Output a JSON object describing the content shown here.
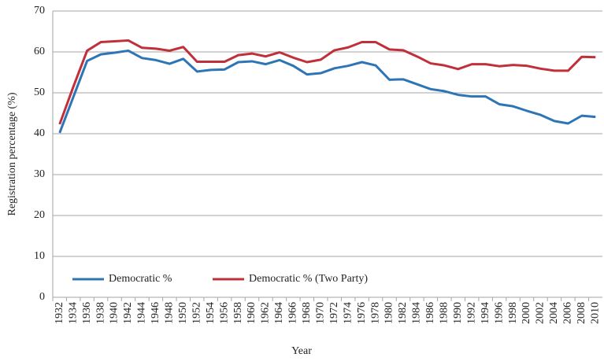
{
  "chart_data": {
    "type": "line",
    "x_label": "Year",
    "y_label": "Registration percentage (%)",
    "categories": [
      "1932",
      "1934",
      "1936",
      "1938",
      "1940",
      "1942",
      "1944",
      "1946",
      "1948",
      "1950",
      "1952",
      "1954",
      "1956",
      "1958",
      "1960",
      "1962",
      "1964",
      "1966",
      "1968",
      "1970",
      "1972",
      "1974",
      "1976",
      "1978",
      "1980",
      "1982",
      "1984",
      "1986",
      "1988",
      "1990",
      "1992",
      "1994",
      "1996",
      "1998",
      "2000",
      "2002",
      "2004",
      "2006",
      "2008",
      "2010"
    ],
    "series": [
      {
        "name": "Democratic %",
        "color": "#2e75b6",
        "values": [
          40.2,
          49,
          57.8,
          59.4,
          59.8,
          60.3,
          58.5,
          58,
          57.1,
          58.3,
          55.2,
          55.6,
          55.7,
          57.5,
          57.7,
          57,
          58,
          56.6,
          54.5,
          54.8,
          56,
          56.6,
          57.5,
          56.7,
          53.2,
          53.3,
          52.1,
          50.9,
          50.4,
          49.5,
          49.1,
          49.1,
          47.2,
          46.7,
          45.6,
          44.6,
          43.1,
          42.5,
          44.4,
          44.1
        ]
      },
      {
        "name": "Democratic % (Two Party)",
        "color": "#c0303a",
        "values": [
          42.3,
          51.5,
          60.3,
          62.4,
          62.6,
          62.8,
          61,
          60.8,
          60.3,
          61.2,
          57.6,
          57.6,
          57.6,
          59.2,
          59.6,
          58.9,
          59.9,
          58.6,
          57.5,
          58.1,
          60.4,
          61.1,
          62.4,
          62.4,
          60.6,
          60.4,
          58.9,
          57.2,
          56.7,
          55.8,
          57,
          57,
          56.5,
          56.8,
          56.6,
          55.9,
          55.4,
          55.4,
          58.8,
          58.7
        ]
      }
    ],
    "ylim": [
      0,
      70
    ],
    "yticks": [
      0,
      10,
      20,
      30,
      40,
      50,
      60,
      70
    ],
    "grid": true,
    "legend": "bottom-left"
  }
}
